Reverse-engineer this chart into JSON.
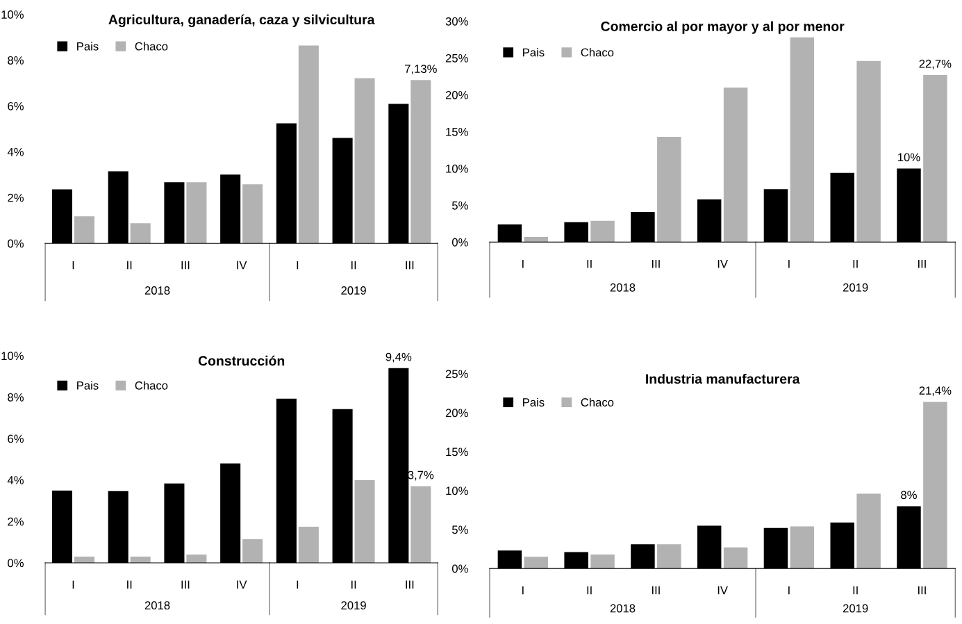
{
  "chart_data": [
    {
      "type": "bar",
      "title": "Agricultura, ganadería, caza y silvicultura",
      "categories": [
        "I",
        "II",
        "III",
        "IV",
        "I",
        "II",
        "III"
      ],
      "annotations": [
        "2018",
        "2019"
      ],
      "ylim": [
        0,
        10
      ],
      "yticks": [
        {
          "value": 0,
          "label": "0%"
        },
        {
          "value": 2,
          "label": "2%"
        },
        {
          "value": 4,
          "label": "4%"
        },
        {
          "value": 6,
          "label": "6%"
        },
        {
          "value": 8,
          "label": "8%"
        },
        {
          "value": 10,
          "label": "10%"
        }
      ],
      "legend": "top left",
      "grid": false,
      "series": [
        {
          "name": "Pais",
          "color": "#000000",
          "values": [
            2.36,
            3.15,
            2.67,
            3.0,
            5.24,
            4.6,
            6.09
          ],
          "value_labels": [
            null,
            null,
            null,
            null,
            null,
            null,
            null
          ]
        },
        {
          "name": "Chaco",
          "color": "#b2b2b2",
          "values": [
            1.18,
            0.88,
            2.67,
            2.58,
            8.64,
            7.21,
            7.13
          ],
          "value_labels": [
            null,
            null,
            null,
            null,
            null,
            null,
            "7,13%"
          ]
        }
      ]
    },
    {
      "type": "bar",
      "title": "Comercio al por mayor y al por menor",
      "categories": [
        "I",
        "II",
        "III",
        "IV",
        "I",
        "II",
        "III"
      ],
      "annotations": [
        "2018",
        "2019"
      ],
      "ylim": [
        0,
        30
      ],
      "yticks": [
        {
          "value": 0,
          "label": "0%"
        },
        {
          "value": 5,
          "label": "5%"
        },
        {
          "value": 10,
          "label": "10%"
        },
        {
          "value": 15,
          "label": "15%"
        },
        {
          "value": 20,
          "label": "20%"
        },
        {
          "value": 25,
          "label": "25%"
        },
        {
          "value": 30,
          "label": "30%"
        }
      ],
      "legend": "top left",
      "grid": false,
      "series": [
        {
          "name": "Pais",
          "color": "#000000",
          "values": [
            2.4,
            2.7,
            4.1,
            5.8,
            7.2,
            9.4,
            10
          ],
          "value_labels": [
            null,
            null,
            null,
            null,
            null,
            null,
            "10%"
          ]
        },
        {
          "name": "Chaco",
          "color": "#b2b2b2",
          "values": [
            0.7,
            2.9,
            14.3,
            21.0,
            27.8,
            24.6,
            22.7
          ],
          "value_labels": [
            null,
            null,
            null,
            null,
            null,
            null,
            "22,7%"
          ]
        }
      ]
    },
    {
      "type": "bar",
      "title": "Construcción",
      "categories": [
        "I",
        "II",
        "III",
        "IV",
        "I",
        "II",
        "III"
      ],
      "annotations": [
        "2018",
        "2019"
      ],
      "ylim": [
        0,
        10
      ],
      "yticks": [
        {
          "value": 0,
          "label": "0%"
        },
        {
          "value": 2,
          "label": "2%"
        },
        {
          "value": 4,
          "label": "4%"
        },
        {
          "value": 6,
          "label": "6%"
        },
        {
          "value": 8,
          "label": "8%"
        },
        {
          "value": 10,
          "label": "10%"
        }
      ],
      "legend": "top left",
      "grid": false,
      "series": [
        {
          "name": "Pais",
          "color": "#000000",
          "values": [
            3.49,
            3.46,
            3.83,
            4.8,
            7.92,
            7.42,
            9.4
          ],
          "value_labels": [
            null,
            null,
            null,
            null,
            null,
            null,
            "9,4%"
          ]
        },
        {
          "name": "Chaco",
          "color": "#b2b2b2",
          "values": [
            0.3,
            0.3,
            0.4,
            1.14,
            1.74,
            3.99,
            3.7
          ],
          "value_labels": [
            null,
            null,
            null,
            null,
            null,
            null,
            "3,7%"
          ]
        }
      ]
    },
    {
      "type": "bar",
      "title": "Industria manufacturera",
      "categories": [
        "I",
        "II",
        "III",
        "IV",
        "I",
        "II",
        "III"
      ],
      "annotations": [
        "2018",
        "2019"
      ],
      "ylim": [
        0,
        25
      ],
      "yticks": [
        {
          "value": 0,
          "label": "0%"
        },
        {
          "value": 5,
          "label": "5%"
        },
        {
          "value": 10,
          "label": "10%"
        },
        {
          "value": 15,
          "label": "15%"
        },
        {
          "value": 20,
          "label": "20%"
        },
        {
          "value": 25,
          "label": "25%"
        }
      ],
      "legend": "top left",
      "grid": false,
      "series": [
        {
          "name": "Pais",
          "color": "#000000",
          "values": [
            2.3,
            2.1,
            3.1,
            5.5,
            5.2,
            5.9,
            8
          ],
          "value_labels": [
            null,
            null,
            null,
            null,
            null,
            null,
            "8%"
          ]
        },
        {
          "name": "Chaco",
          "color": "#b2b2b2",
          "values": [
            1.5,
            1.8,
            3.1,
            2.7,
            5.4,
            9.6,
            21.4
          ],
          "value_labels": [
            null,
            null,
            null,
            null,
            null,
            null,
            "21,4%"
          ]
        }
      ]
    }
  ]
}
